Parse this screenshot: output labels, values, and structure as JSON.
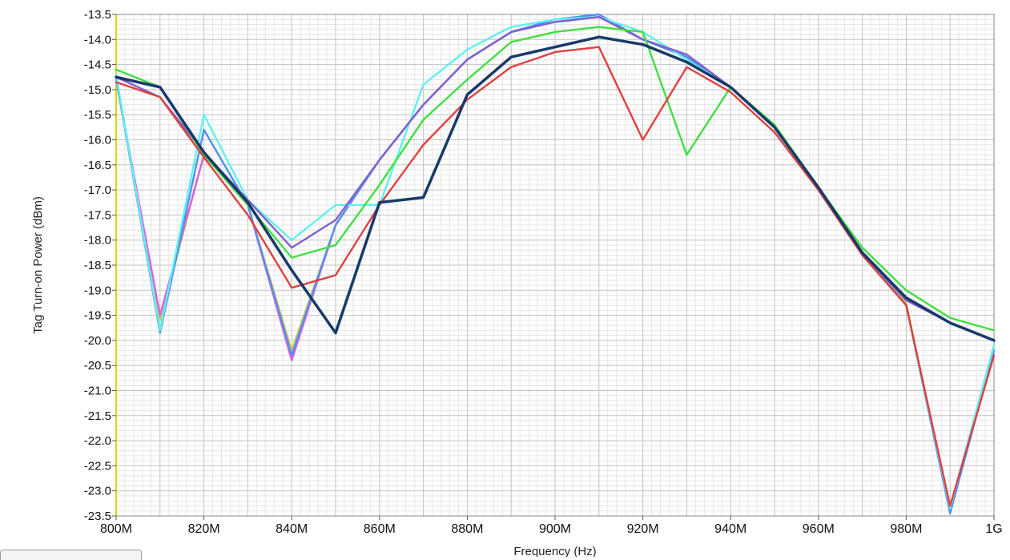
{
  "chart_data": {
    "type": "line",
    "title": "",
    "xlabel": "Frequency (Hz)",
    "ylabel": "Tag Turn-on Power (dBm)",
    "xlim": [
      800,
      1000
    ],
    "ylim": [
      -23.5,
      -13.5
    ],
    "grid": true,
    "x": [
      800,
      810,
      820,
      830,
      840,
      850,
      860,
      870,
      880,
      890,
      900,
      910,
      920,
      930,
      940,
      950,
      960,
      970,
      980,
      990,
      1000
    ],
    "x_tick_labels": [
      "800M",
      "820M",
      "840M",
      "860M",
      "880M",
      "900M",
      "920M",
      "940M",
      "960M",
      "980M",
      "1G"
    ],
    "y_tick_labels": [
      "-13.5",
      "-14.0",
      "-14.5",
      "-15.0",
      "-15.5",
      "-16.0",
      "-16.5",
      "-17.0",
      "-17.5",
      "-18.0",
      "-18.5",
      "-19.0",
      "-19.5",
      "-20.0",
      "-20.5",
      "-21.0",
      "-21.5",
      "-22.0",
      "-22.5",
      "-23.0",
      "-23.5"
    ],
    "series": [
      {
        "color": "#c8c850",
        "values": [
          -14.8,
          -19.6,
          -16.3,
          -17.3,
          -20.2,
          -17.7,
          -16.4,
          -15.3,
          -14.4,
          -13.85,
          -13.65,
          -13.55,
          -14.0,
          -14.35,
          -14.95,
          -15.75,
          -16.95,
          -18.25,
          -19.25,
          -23.4,
          -20.1
        ]
      },
      {
        "color": "#e060e0",
        "values": [
          -14.8,
          -19.5,
          -16.3,
          -17.3,
          -20.4,
          -17.7,
          -16.4,
          -15.3,
          -14.4,
          -13.85,
          -13.65,
          -13.55,
          -14.0,
          -14.3,
          -14.95,
          -15.75,
          -16.95,
          -18.25,
          -19.3,
          -23.35,
          -20.1
        ]
      },
      {
        "color": "#5090f0",
        "values": [
          -14.75,
          -19.85,
          -15.8,
          -17.3,
          -20.3,
          -17.7,
          -16.4,
          -15.3,
          -14.4,
          -13.85,
          -13.6,
          -13.5,
          -14.0,
          -14.35,
          -14.95,
          -15.75,
          -16.95,
          -18.25,
          -19.3,
          -23.45,
          -20.2
        ]
      },
      {
        "color": "#60f0f0",
        "values": [
          -14.7,
          -19.8,
          -15.5,
          -17.2,
          -18.0,
          -17.3,
          -17.3,
          -14.9,
          -14.2,
          -13.75,
          -13.6,
          -13.55,
          -13.85,
          -14.4,
          -14.95,
          -15.75,
          -17.0,
          -18.3,
          -19.3,
          -23.35,
          -20.1
        ]
      },
      {
        "color": "#8060d0",
        "values": [
          -14.75,
          -15.15,
          -16.25,
          -17.2,
          -18.15,
          -17.6,
          -16.4,
          -15.3,
          -14.4,
          -13.85,
          -13.65,
          -13.55,
          -14.0,
          -14.3,
          -14.95,
          -15.75,
          -16.95,
          -18.25,
          -19.2,
          -19.65,
          -20.0
        ]
      },
      {
        "color": "#40e040",
        "values": [
          -14.6,
          -14.95,
          -16.3,
          -17.3,
          -18.35,
          -18.1,
          -16.9,
          -15.6,
          -14.8,
          -14.05,
          -13.85,
          -13.75,
          -13.85,
          -16.3,
          -14.95,
          -15.7,
          -16.95,
          -18.15,
          -19.0,
          -19.55,
          -19.8
        ]
      },
      {
        "color": "#e04040",
        "values": [
          -14.85,
          -15.15,
          -16.35,
          -17.5,
          -18.95,
          -18.7,
          -17.3,
          -16.1,
          -15.2,
          -14.55,
          -14.25,
          -14.15,
          -16.0,
          -14.55,
          -15.05,
          -15.85,
          -17.0,
          -18.3,
          -19.3,
          -23.3,
          -20.3
        ]
      },
      {
        "color": "#183a6a",
        "values": [
          -14.75,
          -14.95,
          -16.25,
          -17.25,
          -18.6,
          -19.85,
          -17.25,
          -17.15,
          -15.1,
          -14.35,
          -14.15,
          -13.95,
          -14.1,
          -14.45,
          -14.95,
          -15.75,
          -16.95,
          -18.25,
          -19.15,
          -19.65,
          -20.0
        ]
      }
    ]
  }
}
